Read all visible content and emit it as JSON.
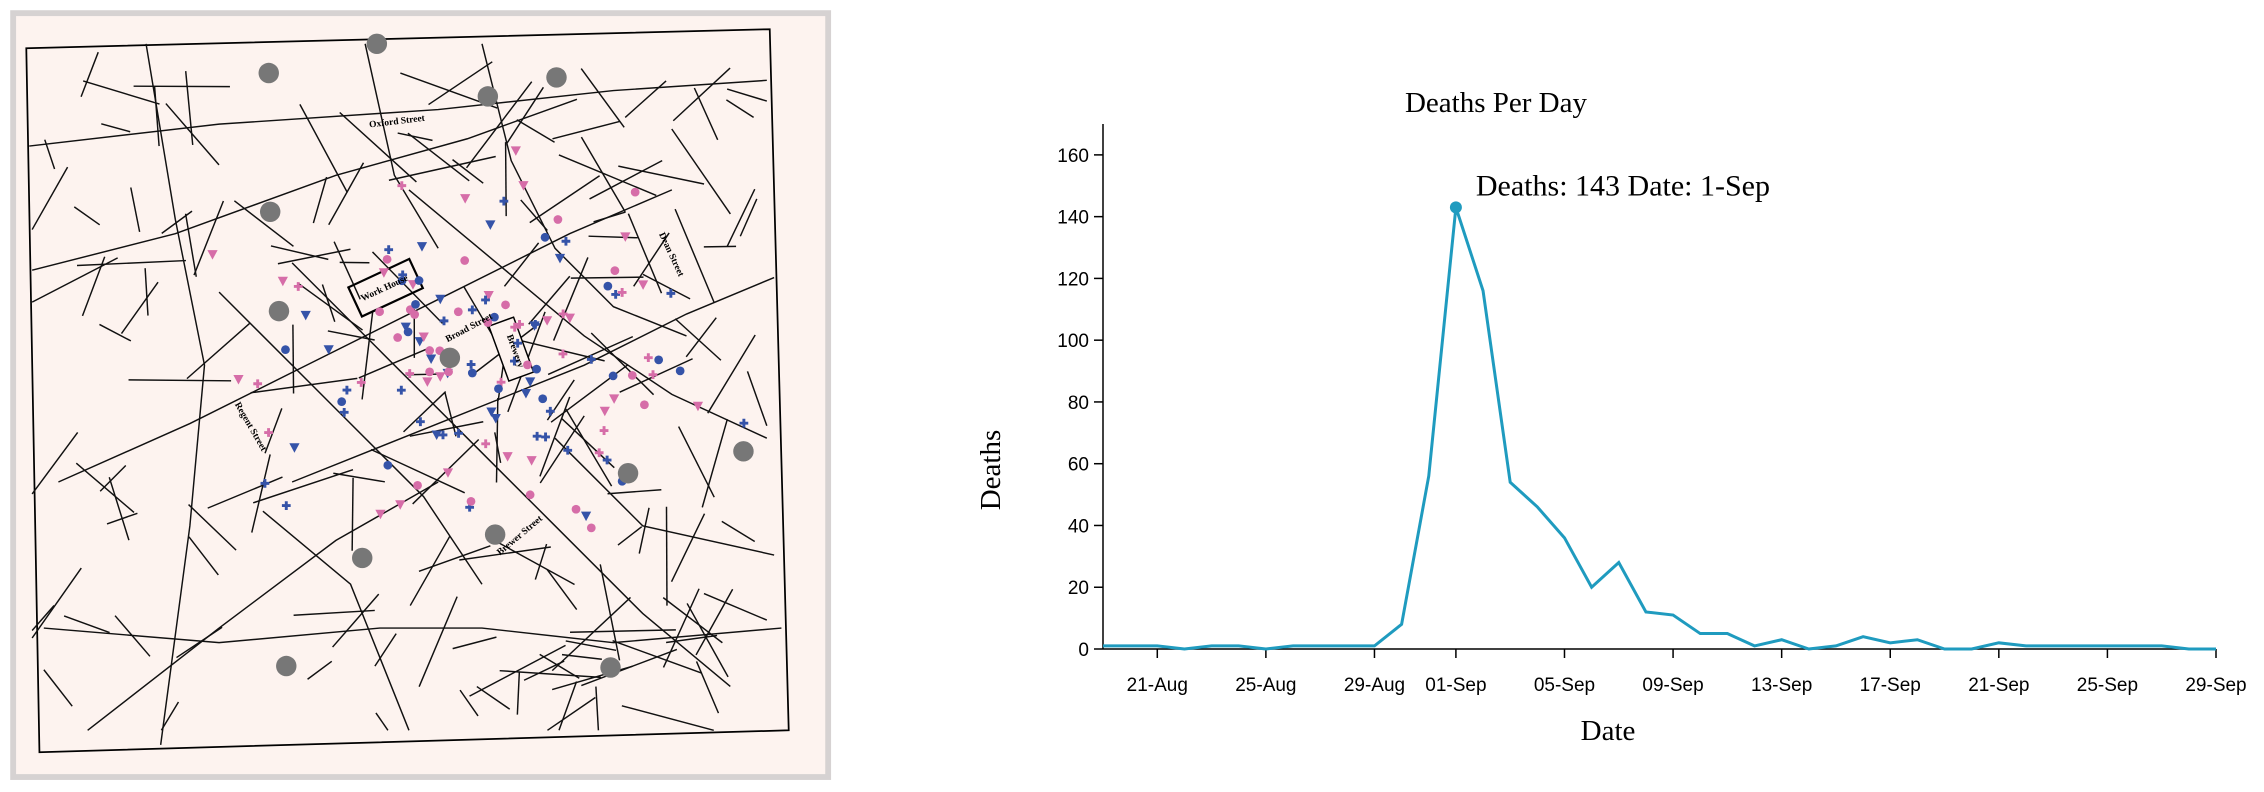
{
  "map": {
    "labels": [
      "Oxford Street",
      "Regent Street",
      "Dean Street",
      "Brewer Street",
      "Work House",
      "Brewery",
      "Broad Street"
    ]
  },
  "chart_data": {
    "type": "line",
    "title": "Deaths Per Day",
    "x_label": "Date",
    "y_label": "Deaths",
    "annotation": "Deaths: 143 Date: 1-Sep",
    "x": [
      "19-Aug",
      "20-Aug",
      "21-Aug",
      "22-Aug",
      "23-Aug",
      "24-Aug",
      "25-Aug",
      "26-Aug",
      "27-Aug",
      "28-Aug",
      "29-Aug",
      "30-Aug",
      "31-Aug",
      "01-Sep",
      "02-Sep",
      "03-Sep",
      "04-Sep",
      "05-Sep",
      "06-Sep",
      "07-Sep",
      "08-Sep",
      "09-Sep",
      "10-Sep",
      "11-Sep",
      "12-Sep",
      "13-Sep",
      "14-Sep",
      "15-Sep",
      "16-Sep",
      "17-Sep",
      "18-Sep",
      "19-Sep",
      "20-Sep",
      "21-Sep",
      "22-Sep",
      "23-Sep",
      "24-Sep",
      "25-Sep",
      "26-Sep",
      "27-Sep",
      "28-Sep",
      "29-Sep"
    ],
    "series": [
      {
        "name": "Deaths",
        "color": "#1f9bbf",
        "values": [
          1,
          1,
          1,
          0,
          1,
          1,
          0,
          1,
          1,
          1,
          1,
          8,
          56,
          143,
          116,
          54,
          46,
          36,
          20,
          28,
          12,
          11,
          5,
          5,
          1,
          3,
          0,
          1,
          4,
          2,
          3,
          0,
          0,
          2,
          1,
          1,
          1,
          1,
          1,
          1,
          0,
          0
        ]
      }
    ],
    "xticks": [
      "21-Aug",
      "25-Aug",
      "29-Aug",
      "01-Sep",
      "05-Sep",
      "09-Sep",
      "13-Sep",
      "17-Sep",
      "21-Sep",
      "25-Sep",
      "29-Sep"
    ],
    "ylim": [
      0,
      170
    ],
    "yticks": [
      0,
      20,
      40,
      60,
      80,
      100,
      120,
      140,
      160
    ]
  }
}
